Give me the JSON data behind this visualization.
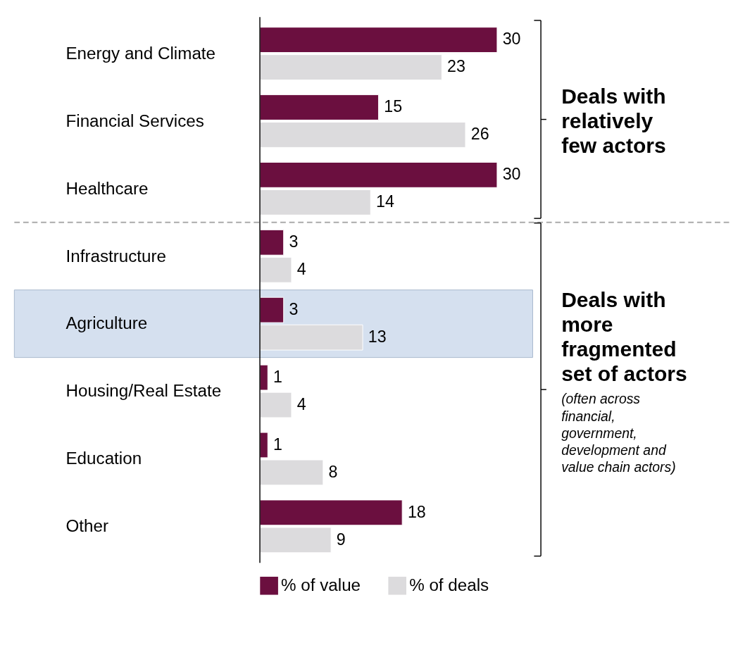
{
  "chart_data": {
    "type": "bar",
    "orientation": "horizontal",
    "categories": [
      "Energy and Climate",
      "Financial Services",
      "Healthcare",
      "Infrastructure",
      "Agriculture",
      "Housing/Real Estate",
      "Education",
      "Other"
    ],
    "series": [
      {
        "name": "% of value",
        "color": "#6b0f3f",
        "values": [
          30,
          15,
          30,
          3,
          3,
          1,
          1,
          18
        ]
      },
      {
        "name": "% of deals",
        "color": "#dcdbdd",
        "values": [
          23,
          26,
          14,
          4,
          13,
          4,
          8,
          9
        ]
      }
    ],
    "data_labels": true,
    "legend": "bottom",
    "bands": [
      {
        "axis": "y",
        "from": "Agriculture",
        "to": "Agriculture",
        "color": "#d5e0ef"
      }
    ],
    "annotations": [
      "Deals with relatively few actors",
      "Deals with more fragmented set of actors",
      "(often across financial, government, development and value chain actors)"
    ]
  }
}
